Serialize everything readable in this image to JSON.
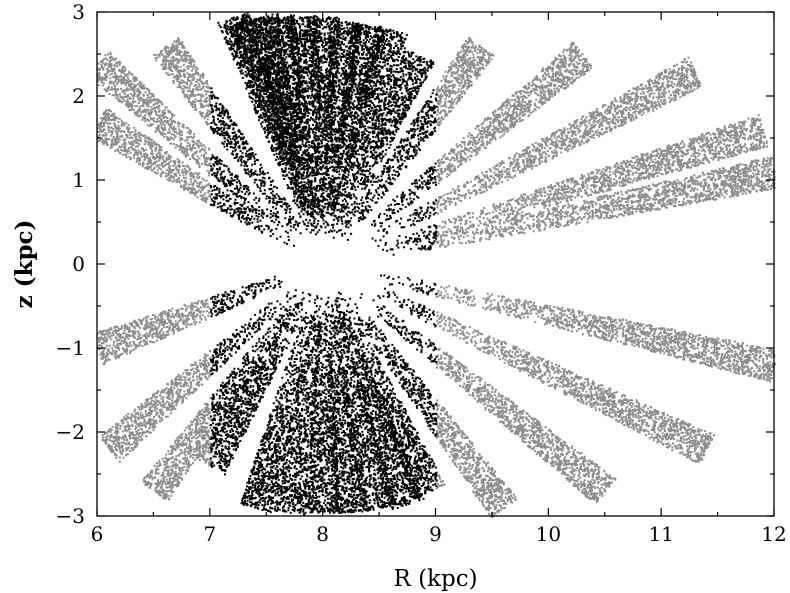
{
  "chart_data": {
    "type": "scatter",
    "title": "",
    "xlabel": "R (kpc)",
    "ylabel": "z (kpc)",
    "xlim": [
      6,
      12
    ],
    "ylim": [
      -3,
      3
    ],
    "x_ticks": [
      6,
      7,
      8,
      9,
      10,
      11,
      12
    ],
    "x_tick_labels": [
      "6",
      "7",
      "8",
      "9",
      "10",
      "11",
      "12"
    ],
    "y_ticks": [
      -3,
      -2,
      -1,
      0,
      1,
      2,
      3
    ],
    "y_tick_labels": [
      "−3",
      "−2",
      "−1",
      "0",
      "1",
      "2",
      "3"
    ],
    "grid": false,
    "legend": "none",
    "series": [
      {
        "color": "#000000",
        "x_range": [
          7.0,
          9.0
        ]
      },
      {
        "color": "#8c8c8c",
        "x_range": [
          6.0,
          12.0
        ]
      }
    ],
    "wedge_origin": {
      "x": 8.0,
      "z": 0.0
    },
    "wedges": [
      {
        "x": 6.0,
        "z": 2.4
      },
      {
        "x": 6.0,
        "z": 1.7
      },
      {
        "x": 6.6,
        "z": 2.6
      },
      {
        "x": 7.2,
        "z": 2.95
      },
      {
        "x": 7.3,
        "z": 2.9
      },
      {
        "x": 7.45,
        "z": 2.95
      },
      {
        "x": 7.6,
        "z": 2.95
      },
      {
        "x": 7.8,
        "z": 2.95
      },
      {
        "x": 8.0,
        "z": 2.95
      },
      {
        "x": 8.2,
        "z": 2.9
      },
      {
        "x": 8.4,
        "z": 2.85
      },
      {
        "x": 8.6,
        "z": 2.8
      },
      {
        "x": 8.85,
        "z": 2.5
      },
      {
        "x": 9.4,
        "z": 2.6
      },
      {
        "x": 10.3,
        "z": 2.5
      },
      {
        "x": 11.3,
        "z": 2.3
      },
      {
        "x": 11.9,
        "z": 1.6
      },
      {
        "x": 12.0,
        "z": 1.1
      },
      {
        "x": 6.0,
        "z": -1.0
      },
      {
        "x": 6.1,
        "z": -2.2
      },
      {
        "x": 6.5,
        "z": -2.7
      },
      {
        "x": 7.0,
        "z": -2.4
      },
      {
        "x": 7.4,
        "z": -2.9
      },
      {
        "x": 7.7,
        "z": -2.95
      },
      {
        "x": 8.0,
        "z": -2.95
      },
      {
        "x": 8.25,
        "z": -2.95
      },
      {
        "x": 8.5,
        "z": -2.9
      },
      {
        "x": 8.75,
        "z": -2.85
      },
      {
        "x": 8.95,
        "z": -2.7
      },
      {
        "x": 9.6,
        "z": -2.9
      },
      {
        "x": 10.5,
        "z": -2.7
      },
      {
        "x": 11.4,
        "z": -2.2
      },
      {
        "x": 12.0,
        "z": -1.2
      }
    ]
  }
}
